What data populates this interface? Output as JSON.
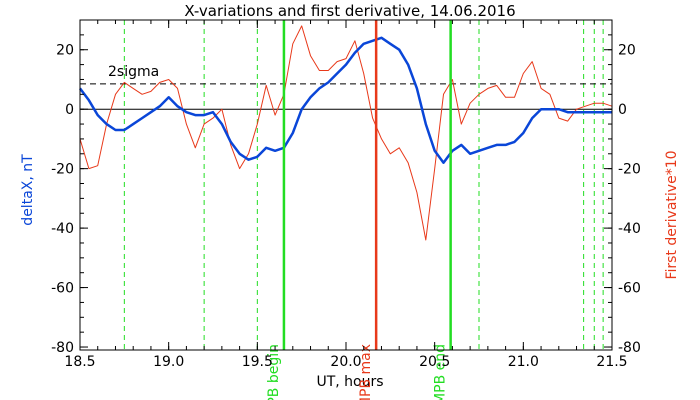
{
  "chart_data": {
    "type": "line",
    "title": "X-variations and first derivative, 14.06.2016",
    "xlabel": "UT, hours",
    "ylabel_left": "deltaX, nT",
    "ylabel_right": "First derivative*10",
    "xlim": [
      18.5,
      21.5
    ],
    "ylim": [
      -81,
      30
    ],
    "xticks": [
      "18.5",
      "19.0",
      "19.5",
      "20.0",
      "20.5",
      "21.0",
      "21.5"
    ],
    "yticks": [
      "20",
      "0",
      "-20",
      "-40",
      "-60",
      "-80"
    ],
    "colors": {
      "deltaX": "#0a46d8",
      "derivative": "#e8391a",
      "mpb_max": "#e8391a",
      "mpb_bounds": "#22dd22",
      "sigma": "#000000"
    },
    "sigma_level": 8.5,
    "sigma_label": "2sigma",
    "zero_line": 0,
    "markers": [
      {
        "x": 19.65,
        "label": "MPB begin",
        "color": "#22dd22"
      },
      {
        "x": 20.17,
        "label": "MPB max",
        "color": "#e8391a"
      },
      {
        "x": 20.59,
        "label": "MPB end",
        "color": "#22dd22"
      }
    ],
    "dashed_lines_x": [
      18.75,
      19.2,
      19.5,
      20.75,
      21.34,
      21.4,
      21.45
    ],
    "series": [
      {
        "name": "deltaX, nT",
        "x": [
          18.5,
          18.55,
          18.6,
          18.65,
          18.7,
          18.75,
          18.8,
          18.85,
          18.9,
          18.95,
          19.0,
          19.05,
          19.1,
          19.15,
          19.2,
          19.25,
          19.3,
          19.35,
          19.4,
          19.45,
          19.5,
          19.55,
          19.6,
          19.65,
          19.7,
          19.75,
          19.8,
          19.85,
          19.9,
          19.95,
          20.0,
          20.05,
          20.1,
          20.15,
          20.2,
          20.25,
          20.3,
          20.35,
          20.4,
          20.45,
          20.5,
          20.55,
          20.6,
          20.65,
          20.7,
          20.75,
          20.8,
          20.85,
          20.9,
          20.95,
          21.0,
          21.05,
          21.1,
          21.15,
          21.2,
          21.25,
          21.3,
          21.35,
          21.4,
          21.45,
          21.5
        ],
        "y": [
          7,
          3,
          -2,
          -5,
          -7,
          -7,
          -5,
          -3,
          -1,
          1,
          4,
          1,
          -1,
          -2,
          -2,
          -1,
          -5,
          -11,
          -15,
          -17,
          -16,
          -13,
          -14,
          -13,
          -8,
          0,
          4,
          7,
          9,
          12,
          15,
          19,
          22,
          23,
          24,
          22,
          20,
          15,
          7,
          -5,
          -14,
          -18,
          -14,
          -12,
          -15,
          -14,
          -13,
          -12,
          -12,
          -11,
          -8,
          -3,
          0,
          0,
          0,
          -1,
          -1,
          -1,
          -1,
          -1,
          -1
        ]
      },
      {
        "name": "First derivative*10",
        "x": [
          18.5,
          18.55,
          18.6,
          18.65,
          18.7,
          18.75,
          18.8,
          18.85,
          18.9,
          18.95,
          19.0,
          19.05,
          19.1,
          19.15,
          19.2,
          19.25,
          19.3,
          19.35,
          19.4,
          19.45,
          19.5,
          19.55,
          19.6,
          19.65,
          19.7,
          19.75,
          19.8,
          19.85,
          19.9,
          19.95,
          20.0,
          20.05,
          20.1,
          20.15,
          20.2,
          20.25,
          20.3,
          20.35,
          20.4,
          20.45,
          20.5,
          20.55,
          20.6,
          20.65,
          20.7,
          20.75,
          20.8,
          20.85,
          20.9,
          20.95,
          21.0,
          21.05,
          21.1,
          21.15,
          21.2,
          21.25,
          21.3,
          21.35,
          21.4,
          21.45,
          21.5
        ],
        "y": [
          -10,
          -20,
          -19,
          -5,
          5,
          9,
          7,
          5,
          6,
          9,
          10,
          7,
          -5,
          -13,
          -5,
          -3,
          0,
          -12,
          -20,
          -15,
          -5,
          8,
          -2,
          5,
          22,
          28,
          18,
          13,
          13,
          16,
          17,
          23,
          12,
          -3,
          -10,
          -15,
          -13,
          -18,
          -28,
          -44,
          -20,
          5,
          10,
          -5,
          2,
          5,
          7,
          8,
          4,
          4,
          12,
          16,
          7,
          5,
          -3,
          -4,
          0,
          1,
          2,
          2,
          1
        ]
      }
    ]
  }
}
